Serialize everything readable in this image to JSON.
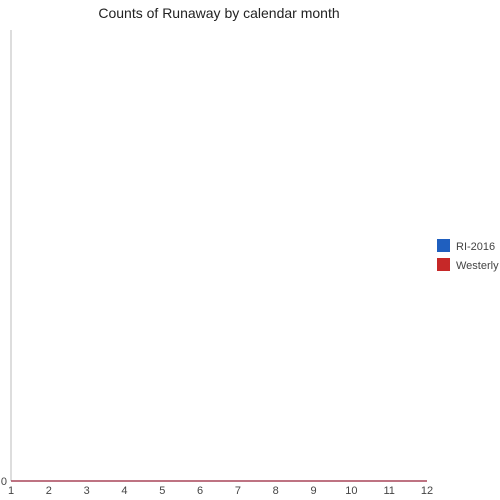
{
  "chart_data": {
    "type": "line",
    "title": "Counts of Runaway by calendar month",
    "xlabel": "",
    "ylabel": "",
    "x": [
      "1",
      "2",
      "3",
      "4",
      "5",
      "6",
      "7",
      "8",
      "9",
      "10",
      "11",
      "12"
    ],
    "xlim": [
      1,
      12
    ],
    "ylim": [
      0,
      1
    ],
    "y_ticks": [
      "0"
    ],
    "series": [
      {
        "name": "RI-2016",
        "color": "#1f5fbf",
        "values": [
          0,
          0,
          0,
          0,
          0,
          0,
          0,
          0,
          0,
          0,
          0,
          0
        ]
      },
      {
        "name": "Westerly",
        "color": "#c62828",
        "values": [
          0,
          0,
          0,
          0,
          0,
          0,
          0,
          0,
          0,
          0,
          0,
          0
        ]
      }
    ],
    "legend": "right",
    "grid": false
  }
}
